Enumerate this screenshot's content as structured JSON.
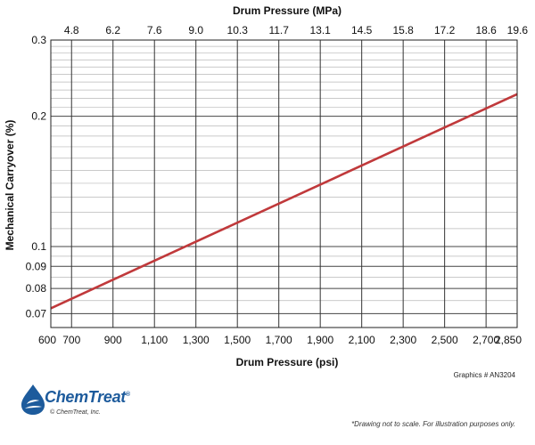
{
  "chart_data": {
    "type": "line",
    "x_bottom": {
      "label": "Drum Pressure (psi)",
      "range": [
        600,
        2850
      ],
      "ticks": [
        {
          "value": 600,
          "label": "600"
        },
        {
          "value": 700,
          "label": "700"
        },
        {
          "value": 900,
          "label": "900"
        },
        {
          "value": 1100,
          "label": "1,100"
        },
        {
          "value": 1300,
          "label": "1,300"
        },
        {
          "value": 1500,
          "label": "1,500"
        },
        {
          "value": 1700,
          "label": "1,700"
        },
        {
          "value": 1900,
          "label": "1,900"
        },
        {
          "value": 2100,
          "label": "2,100"
        },
        {
          "value": 2300,
          "label": "2,300"
        },
        {
          "value": 2500,
          "label": "2,500"
        },
        {
          "value": 2700,
          "label": "2,700"
        },
        {
          "value": 2850,
          "label": "2,850"
        }
      ]
    },
    "x_top": {
      "label": "Drum Pressure (MPa)",
      "ticks": [
        {
          "psi": 700,
          "label": "4.8"
        },
        {
          "psi": 900,
          "label": "6.2"
        },
        {
          "psi": 1100,
          "label": "7.6"
        },
        {
          "psi": 1300,
          "label": "9.0"
        },
        {
          "psi": 1500,
          "label": "10.3"
        },
        {
          "psi": 1700,
          "label": "11.7"
        },
        {
          "psi": 1900,
          "label": "13.1"
        },
        {
          "psi": 2100,
          "label": "14.5"
        },
        {
          "psi": 2300,
          "label": "15.8"
        },
        {
          "psi": 2500,
          "label": "17.2"
        },
        {
          "psi": 2700,
          "label": "18.6"
        },
        {
          "psi": 2850,
          "label": "19.6"
        }
      ]
    },
    "y": {
      "label": "Mechanical Carryover (%)",
      "scale": "log",
      "range": [
        0.065,
        0.3
      ],
      "ticks": [
        {
          "value": 0.07,
          "label": "0.07"
        },
        {
          "value": 0.08,
          "label": "0.08"
        },
        {
          "value": 0.09,
          "label": "0.09"
        },
        {
          "value": 0.1,
          "label": "0.1"
        },
        {
          "value": 0.2,
          "label": "0.2"
        },
        {
          "value": 0.3,
          "label": "0.3"
        }
      ],
      "minor_gridlines": [
        0.065,
        0.075,
        0.085,
        0.095,
        0.11,
        0.12,
        0.13,
        0.14,
        0.15,
        0.16,
        0.17,
        0.18,
        0.19,
        0.21,
        0.22,
        0.23,
        0.24,
        0.25,
        0.26,
        0.27,
        0.28,
        0.29
      ]
    },
    "series": [
      {
        "points": [
          [
            600,
            0.072
          ],
          [
            2850,
            0.225
          ]
        ],
        "color": "#c0393b"
      }
    ],
    "grid": true
  },
  "annotations": {
    "graphics_id": "Graphics # AN3204",
    "note": "*Drawing not to scale. For illustration purposes only."
  },
  "logo": {
    "name": "ChemTreat",
    "registered": "®",
    "copyright": "© ChemTreat, Inc.",
    "color": "#1d5b9c"
  }
}
